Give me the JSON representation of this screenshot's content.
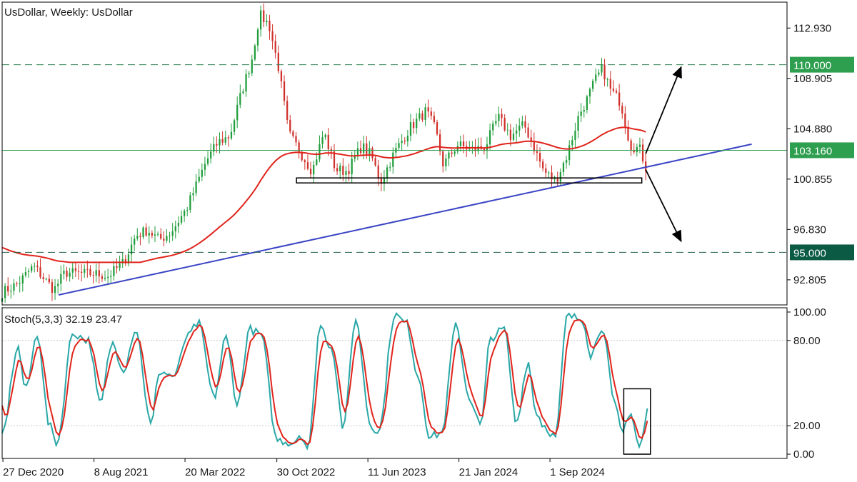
{
  "chart_data": [
    {
      "type": "candlestick",
      "title": "UsDollar, Weekly:  UsDollar",
      "ylim": [
        90.8,
        115.0
      ],
      "y_ticks": [
        "112.930",
        "108.905",
        "104.880",
        "100.855",
        "96.830",
        "92.805"
      ],
      "x_ticks": [
        "27 Dec 2020",
        "8 Aug 2021",
        "20 Mar 2022",
        "30 Oct 2022",
        "11 Jun 2023",
        "21 Jan 2024",
        "1 Sep 2024"
      ],
      "grid": false,
      "levels": [
        {
          "value": 110.0,
          "label": "110.000",
          "style": "dashed",
          "color": "#2e7d4f",
          "tag_color": "#2e9e4f"
        },
        {
          "value": 103.16,
          "label": "103.160",
          "style": "solid",
          "color": "#2e9e4f",
          "tag_color": "#2e9e4f"
        },
        {
          "value": 95.0,
          "label": "95.000",
          "style": "dashed",
          "color": "#1f5f45",
          "tag_color": "#0b5a43"
        }
      ],
      "support_box": {
        "y_top": 100.95,
        "y_bottom": 100.55
      },
      "moving_average_color": "#e0241b",
      "trendline_color": "#3a44c4",
      "trendline": [
        {
          "x": 0.072,
          "y": 91.6
        },
        {
          "x": 0.955,
          "y": 103.65
        }
      ],
      "arrows": [
        {
          "from_x": 0.82,
          "from_y": 102.9,
          "to_x": 0.865,
          "to_y": 109.8
        },
        {
          "from_x": 0.82,
          "from_y": 101.6,
          "to_x": 0.865,
          "to_y": 95.9
        }
      ],
      "anchors": [
        {
          "x": 0.0,
          "y": 91.8
        },
        {
          "x": 0.02,
          "y": 92.5
        },
        {
          "x": 0.04,
          "y": 93.9
        },
        {
          "x": 0.052,
          "y": 93.0
        },
        {
          "x": 0.066,
          "y": 92.0
        },
        {
          "x": 0.08,
          "y": 93.4
        },
        {
          "x": 0.1,
          "y": 93.3
        },
        {
          "x": 0.118,
          "y": 93.3
        },
        {
          "x": 0.135,
          "y": 93.1
        },
        {
          "x": 0.155,
          "y": 94.2
        },
        {
          "x": 0.17,
          "y": 96.3
        },
        {
          "x": 0.185,
          "y": 96.8
        },
        {
          "x": 0.2,
          "y": 96.0
        },
        {
          "x": 0.215,
          "y": 96.6
        },
        {
          "x": 0.235,
          "y": 98.5
        },
        {
          "x": 0.26,
          "y": 102.3
        },
        {
          "x": 0.275,
          "y": 103.8
        },
        {
          "x": 0.29,
          "y": 104.3
        },
        {
          "x": 0.305,
          "y": 107.8
        },
        {
          "x": 0.318,
          "y": 110.4
        },
        {
          "x": 0.328,
          "y": 114.0
        },
        {
          "x": 0.34,
          "y": 113.2
        },
        {
          "x": 0.352,
          "y": 109.8
        },
        {
          "x": 0.365,
          "y": 104.5
        },
        {
          "x": 0.382,
          "y": 102.8
        },
        {
          "x": 0.395,
          "y": 101.5
        },
        {
          "x": 0.41,
          "y": 104.6
        },
        {
          "x": 0.425,
          "y": 101.6
        },
        {
          "x": 0.44,
          "y": 101.5
        },
        {
          "x": 0.458,
          "y": 103.5
        },
        {
          "x": 0.47,
          "y": 102.8
        },
        {
          "x": 0.482,
          "y": 100.6
        },
        {
          "x": 0.5,
          "y": 103.0
        },
        {
          "x": 0.52,
          "y": 105.0
        },
        {
          "x": 0.54,
          "y": 106.3
        },
        {
          "x": 0.552,
          "y": 104.8
        },
        {
          "x": 0.562,
          "y": 102.0
        },
        {
          "x": 0.58,
          "y": 103.6
        },
        {
          "x": 0.6,
          "y": 103.2
        },
        {
          "x": 0.615,
          "y": 103.4
        },
        {
          "x": 0.632,
          "y": 105.8
        },
        {
          "x": 0.648,
          "y": 104.3
        },
        {
          "x": 0.665,
          "y": 105.2
        },
        {
          "x": 0.675,
          "y": 103.8
        },
        {
          "x": 0.69,
          "y": 101.5
        },
        {
          "x": 0.705,
          "y": 100.7
        },
        {
          "x": 0.72,
          "y": 102.8
        },
        {
          "x": 0.735,
          "y": 106.0
        },
        {
          "x": 0.745,
          "y": 107.2
        },
        {
          "x": 0.755,
          "y": 108.7
        },
        {
          "x": 0.765,
          "y": 109.7
        },
        {
          "x": 0.775,
          "y": 108.0
        },
        {
          "x": 0.788,
          "y": 107.0
        },
        {
          "x": 0.8,
          "y": 103.6
        },
        {
          "x": 0.813,
          "y": 103.2
        },
        {
          "x": 0.82,
          "y": 101.8
        }
      ]
    },
    {
      "type": "line",
      "title": "Stoch(5,3,3) 32.19 23.47",
      "ylim": [
        -3,
        103
      ],
      "y_ticks": [
        "100.00",
        "80.00",
        "20.00",
        "0.00"
      ],
      "series": [
        {
          "color": "#2aa7a7"
        },
        {
          "color": "#e0241b"
        }
      ],
      "highlight_box": {
        "y_top": 46,
        "y_bottom": 0
      }
    }
  ]
}
